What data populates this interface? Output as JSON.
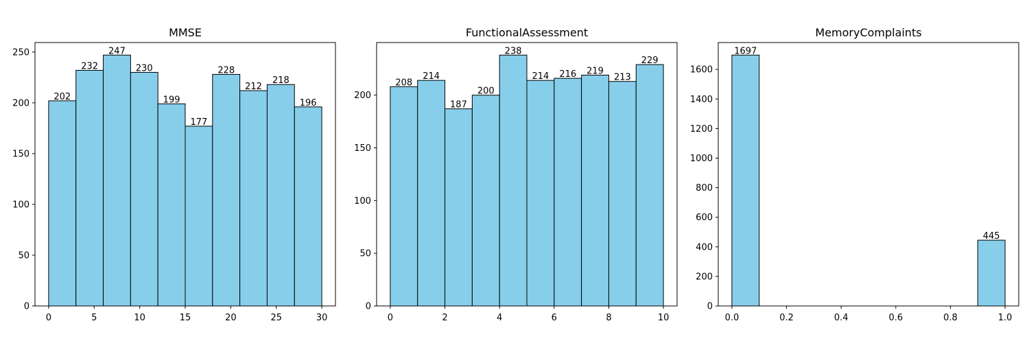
{
  "chart_data": [
    {
      "type": "bar",
      "title": "MMSE",
      "xlabel": "",
      "ylabel": "",
      "bin_edges": [
        0,
        3,
        6,
        9,
        12,
        15,
        18,
        21,
        24,
        27,
        30
      ],
      "values": [
        202,
        232,
        247,
        230,
        199,
        177,
        228,
        212,
        218,
        196
      ],
      "xlim": [
        -1.5,
        31.5
      ],
      "ylim": [
        0,
        259.35
      ],
      "xticks": [
        0,
        5,
        10,
        15,
        20,
        25,
        30
      ],
      "xtick_labels": [
        "0",
        "5",
        "10",
        "15",
        "20",
        "25",
        "30"
      ],
      "yticks": [
        0,
        50,
        100,
        150,
        200,
        250
      ],
      "ytick_labels": [
        "0",
        "50",
        "100",
        "150",
        "200",
        "250"
      ],
      "grid": false,
      "bar_color": "#87CEEB",
      "edge_color": "#000000"
    },
    {
      "type": "bar",
      "title": "FunctionalAssessment",
      "xlabel": "",
      "ylabel": "",
      "bin_edges": [
        0,
        1,
        2,
        3,
        4,
        5,
        6,
        7,
        8,
        9,
        10
      ],
      "values": [
        208,
        214,
        187,
        200,
        238,
        214,
        216,
        219,
        213,
        229
      ],
      "xlim": [
        -0.5,
        10.5
      ],
      "ylim": [
        0,
        249.9
      ],
      "xticks": [
        0,
        2,
        4,
        6,
        8,
        10
      ],
      "xtick_labels": [
        "0",
        "2",
        "4",
        "6",
        "8",
        "10"
      ],
      "yticks": [
        0,
        50,
        100,
        150,
        200
      ],
      "ytick_labels": [
        "0",
        "50",
        "100",
        "150",
        "200"
      ],
      "grid": false,
      "bar_color": "#87CEEB",
      "edge_color": "#000000"
    },
    {
      "type": "bar",
      "title": "MemoryComplaints",
      "xlabel": "",
      "ylabel": "",
      "bin_edges": [
        0,
        0.1,
        0.2,
        0.3,
        0.4,
        0.5,
        0.6,
        0.7,
        0.8,
        0.9,
        1.0
      ],
      "values": [
        1697,
        0,
        0,
        0,
        0,
        0,
        0,
        0,
        0,
        445
      ],
      "label_bins": [
        0,
        9
      ],
      "xlim": [
        -0.05,
        1.05
      ],
      "ylim": [
        0,
        1781.85
      ],
      "xticks": [
        0,
        0.2,
        0.4,
        0.6,
        0.8,
        1.0
      ],
      "xtick_labels": [
        "0.0",
        "0.2",
        "0.4",
        "0.6",
        "0.8",
        "1.0"
      ],
      "yticks": [
        0,
        200,
        400,
        600,
        800,
        1000,
        1200,
        1400,
        1600
      ],
      "ytick_labels": [
        "0",
        "200",
        "400",
        "600",
        "800",
        "1000",
        "1200",
        "1400",
        "1600"
      ],
      "grid": false,
      "bar_color": "#87CEEB",
      "edge_color": "#000000"
    }
  ]
}
